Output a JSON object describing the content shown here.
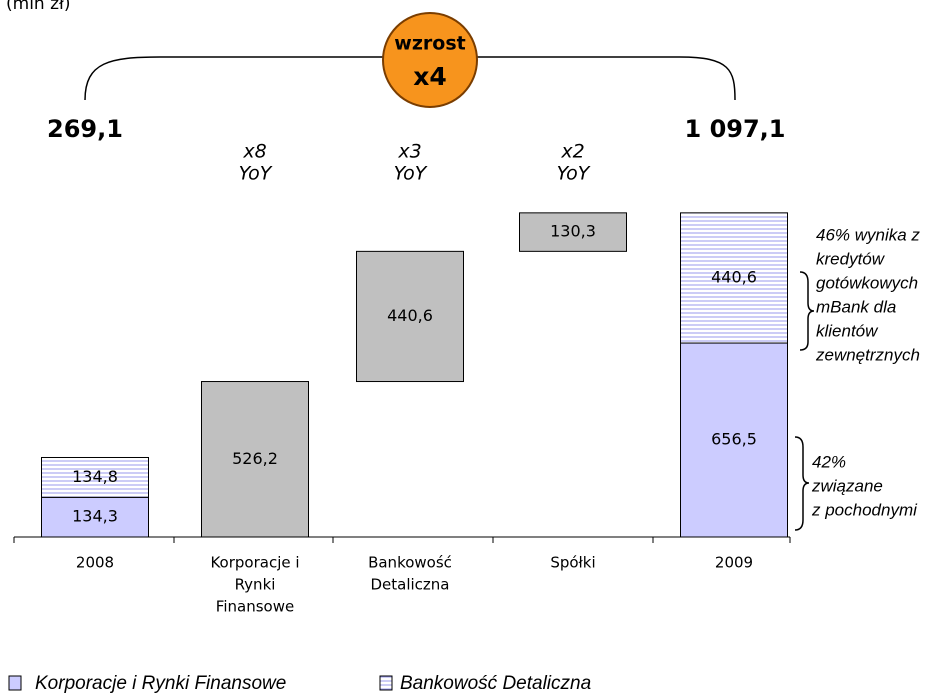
{
  "chart_data": {
    "type": "waterfall",
    "unit_label": "(mln zł)",
    "categories": [
      [
        "2008"
      ],
      [
        "Korporacje i",
        "Rynki",
        "Finansowe"
      ],
      [
        "Bankowość",
        "Detaliczna"
      ],
      [
        "Spółki"
      ],
      [
        "2009"
      ]
    ],
    "series": [
      {
        "name": "Korporacje i Rynki Finansowe",
        "color": "#ccccff",
        "values": [
          134.3,
          null,
          null,
          null,
          656.5
        ],
        "value_labels": [
          "134,3",
          null,
          null,
          null,
          "656,5"
        ]
      },
      {
        "name": "Bankowość Detaliczna",
        "color": "#ccccff",
        "pattern": "horizontal-lines",
        "values": [
          134.8,
          null,
          null,
          null,
          440.6
        ],
        "value_labels": [
          "134,8",
          null,
          null,
          null,
          "440,6"
        ]
      }
    ],
    "deltas": {
      "color": "#c0c0c0",
      "values": [
        null,
        526.2,
        440.6,
        130.3,
        null
      ],
      "value_labels": [
        null,
        "526,2",
        "440,6",
        "130,3",
        null
      ]
    },
    "totals": {
      "values": [
        269.1,
        1097.1
      ],
      "value_labels": [
        "269,1",
        "1 097,1"
      ]
    },
    "growth_labels": [
      null,
      [
        "x8",
        "YoY"
      ],
      [
        "x3",
        "YoY"
      ],
      [
        "x2",
        "YoY"
      ],
      null
    ],
    "badge": {
      "lines": [
        "wzrost",
        "x4"
      ],
      "color": "#f7941d"
    },
    "notes": [
      [
        "46% wynika z",
        "kredytów",
        "gotówkowych",
        "mBank dla",
        "klientów",
        "zewnętrznych"
      ],
      [
        "42%",
        "związane",
        "z pochodnymi"
      ]
    ],
    "ylim": [
      0,
      1100
    ]
  }
}
